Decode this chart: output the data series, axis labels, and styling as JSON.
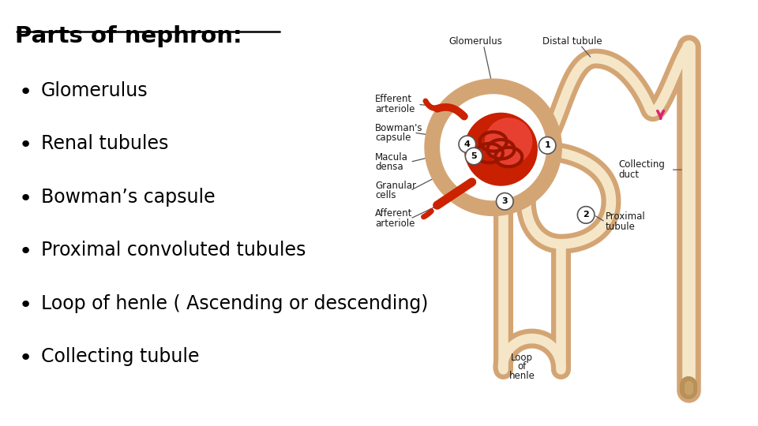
{
  "title": "Parts of nephron",
  "bullet_points": [
    "Glomerulus",
    "Renal tubules",
    "Bowman’s capsule",
    "Proximal convoluted tubules",
    "Loop of henle ( Ascending or descending)",
    "Collecting tubule"
  ],
  "title_fontsize": 21,
  "bullet_fontsize": 17,
  "background_color": "#ffffff",
  "text_color": "#000000",
  "tubule_color": "#D4A574",
  "tubule_inner": "#F5E6C8",
  "glomerulus_color": "#CC2200",
  "glom_inner": "#E84040",
  "arrow_color": "#DD2277",
  "label_color": "#1a1a1a",
  "label_fontsize": 8.5,
  "num_fontsize": 8
}
